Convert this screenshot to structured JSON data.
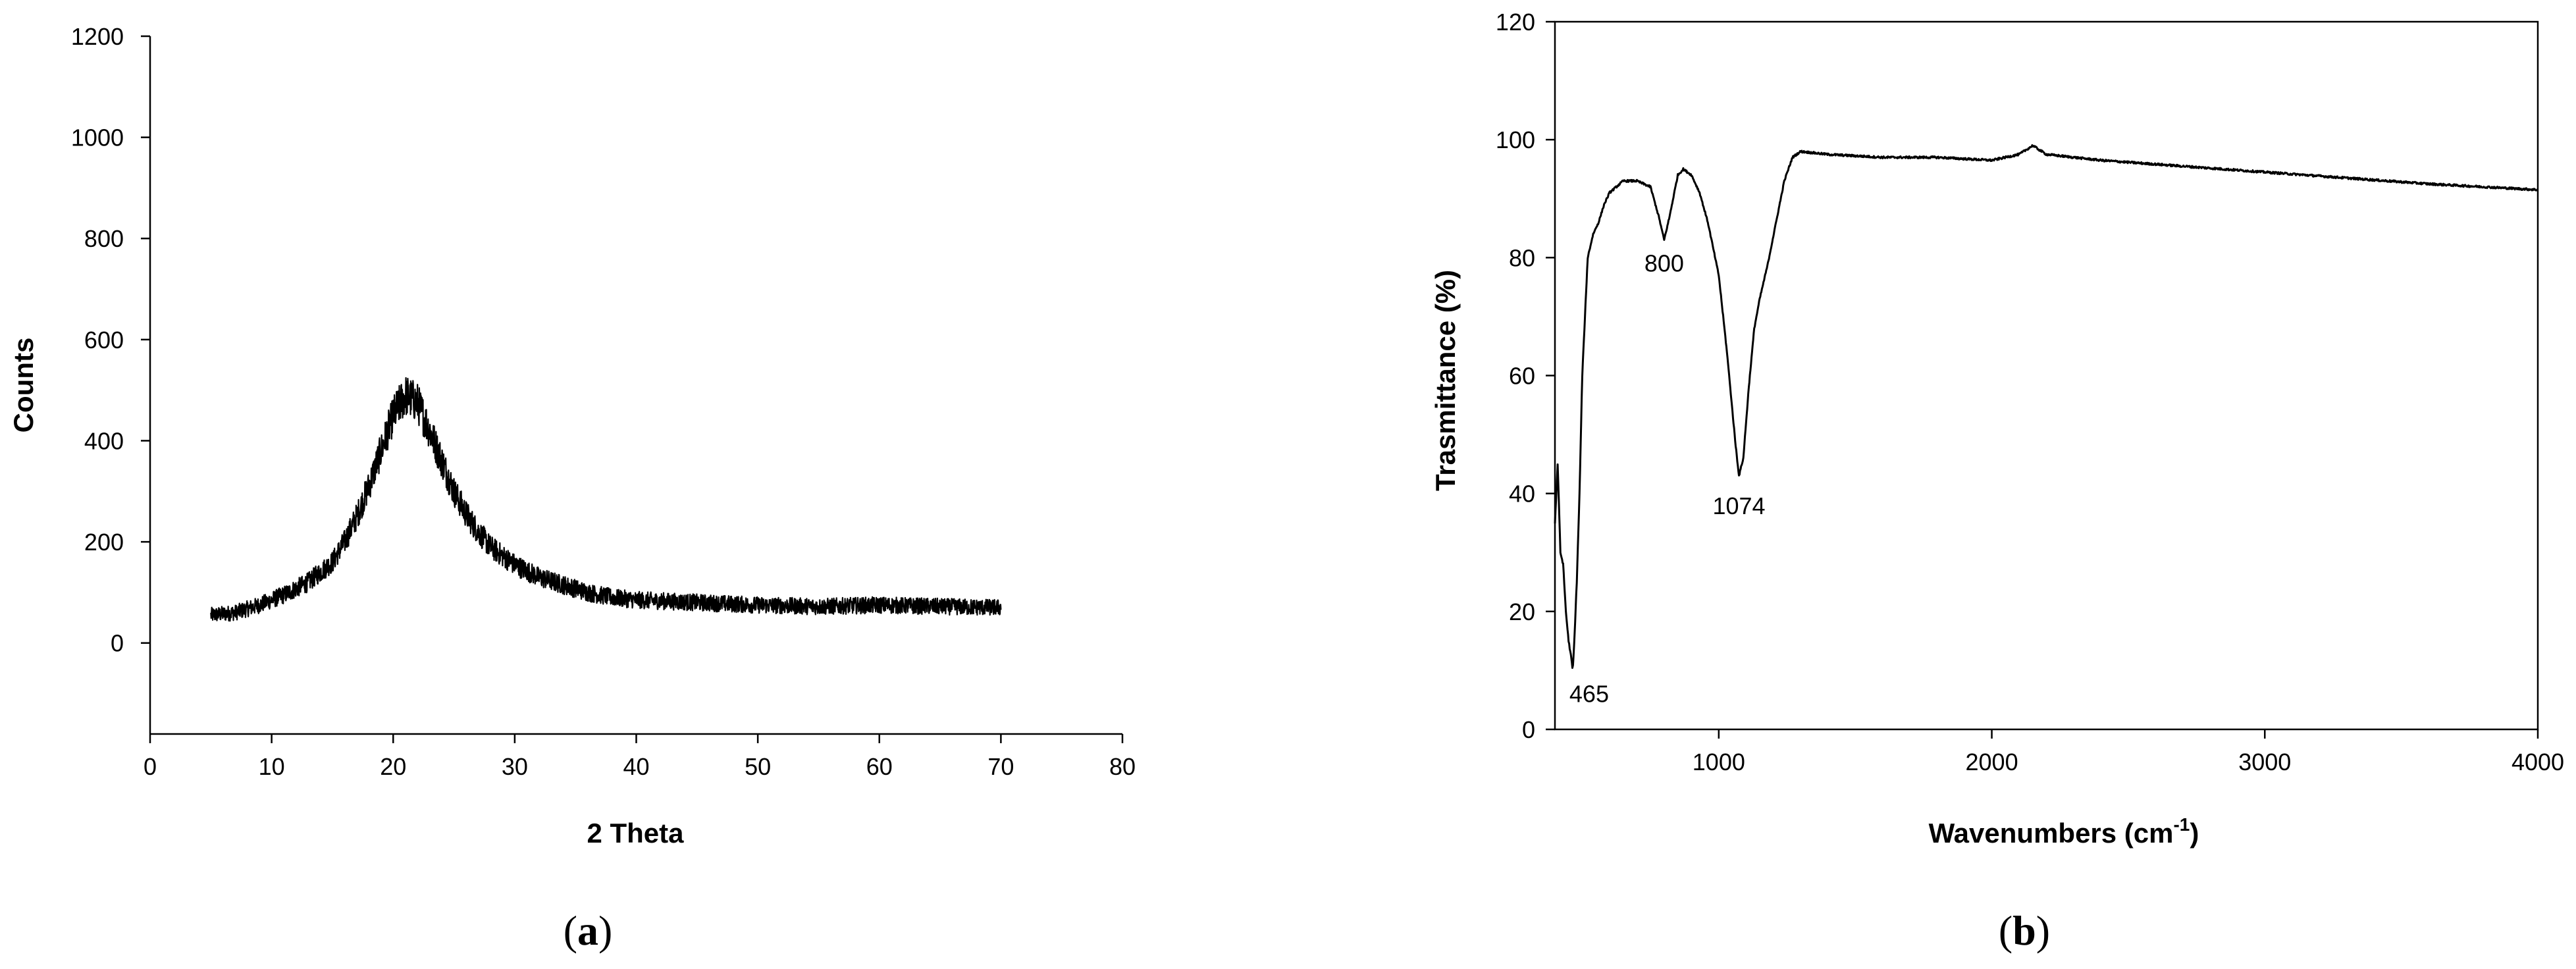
{
  "chart_data": [
    {
      "type": "line",
      "panel_label": "a",
      "title": "",
      "xlabel": "2 Theta",
      "ylabel": "Counts",
      "xlim": [
        0,
        80
      ],
      "ylim": [
        -180,
        1200
      ],
      "xticks": [
        0,
        10,
        20,
        30,
        40,
        50,
        60,
        70,
        80
      ],
      "yticks": [
        0,
        200,
        400,
        600,
        800,
        1000,
        1200
      ],
      "xtick_labels": [
        "0",
        "10",
        "20",
        "30",
        "40",
        "50",
        "60",
        "70",
        "80"
      ],
      "ytick_labels": [
        "0",
        "200",
        "400",
        "600",
        "800",
        "1000",
        "1200"
      ],
      "grid": false,
      "noisy": true,
      "series": [
        {
          "x": [
            5,
            7,
            9,
            11,
            13,
            15,
            16,
            17,
            18,
            19,
            20,
            21,
            22,
            23,
            24,
            25,
            26,
            27,
            28,
            30,
            32,
            34,
            36,
            38,
            40,
            45,
            50,
            55,
            60,
            65,
            70
          ],
          "y": [
            55,
            60,
            75,
            95,
            120,
            160,
            200,
            250,
            310,
            380,
            450,
            490,
            475,
            420,
            360,
            300,
            255,
            220,
            190,
            155,
            130,
            115,
            100,
            90,
            85,
            80,
            75,
            72,
            75,
            72,
            70
          ]
        }
      ]
    },
    {
      "type": "line",
      "panel_label": "b",
      "title": "",
      "xlabel": "Wavenumbers (cm",
      "xlabel_sup": "-1",
      "xlabel_tail": ")",
      "ylabel": "Trasmittance (%)",
      "xlim": [
        400,
        4000
      ],
      "ylim": [
        0,
        120
      ],
      "xticks": [
        1000,
        2000,
        3000,
        4000
      ],
      "yticks": [
        0,
        20,
        40,
        60,
        80,
        100,
        120
      ],
      "xtick_labels": [
        "1000",
        "2000",
        "3000",
        "4000"
      ],
      "ytick_labels": [
        "0",
        "20",
        "40",
        "60",
        "80",
        "100",
        "120"
      ],
      "grid": false,
      "framed": true,
      "annotations": [
        {
          "text": "465",
          "x": 465,
          "y": 10
        },
        {
          "text": "800",
          "x": 800,
          "y": 83
        },
        {
          "text": "1074",
          "x": 1074,
          "y": 43
        }
      ],
      "series": [
        {
          "x": [
            400,
            410,
            420,
            430,
            440,
            450,
            460,
            465,
            470,
            480,
            490,
            500,
            520,
            540,
            560,
            580,
            600,
            650,
            700,
            750,
            780,
            800,
            820,
            850,
            870,
            900,
            930,
            960,
            1000,
            1030,
            1060,
            1074,
            1090,
            1110,
            1130,
            1150,
            1180,
            1210,
            1240,
            1270,
            1300,
            1400,
            1600,
            1800,
            2000,
            2100,
            2150,
            2200,
            2400,
            2700,
            3000,
            3300,
            3600,
            3800,
            4000
          ],
          "y": [
            35,
            45,
            30,
            28,
            20,
            15,
            12,
            10,
            14,
            25,
            40,
            60,
            80,
            84,
            86,
            89,
            91,
            93,
            93,
            92,
            87,
            83,
            87,
            94,
            95,
            94,
            91,
            86,
            77,
            64,
            49,
            43,
            46,
            58,
            68,
            73,
            79,
            86,
            93,
            97,
            98,
            97.5,
            97,
            97,
            96.5,
            97.5,
            99,
            97.5,
            96.5,
            95.5,
            94.5,
            93.5,
            92.5,
            92,
            91.5
          ]
        }
      ]
    }
  ]
}
